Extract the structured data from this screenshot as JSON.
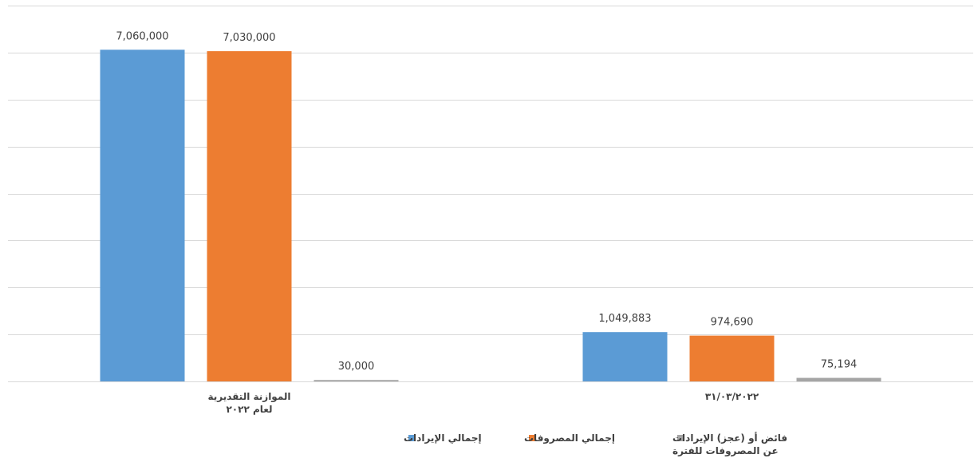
{
  "chart_data": {
    "type": "bar",
    "categories": [
      [
        "٣١/٠٣/٢٠٢٢"
      ],
      [
        "الموازنة التقديرية",
        "لعام ٢٠٢٢"
      ]
    ],
    "series": [
      {
        "name": "إجمالي الإيرادات",
        "color": "#5b9bd5",
        "values": [
          1049883,
          7060000
        ],
        "labels": [
          "1,049,883",
          "7,060,000"
        ]
      },
      {
        "name": "إجمالي المصروفات",
        "color": "#ed7d31",
        "values": [
          974690,
          7030000
        ],
        "labels": [
          "974,690",
          "7,030,000"
        ]
      },
      {
        "name": "فائض أو (عجز) الإيرادات عن المصروفات للفترة",
        "name_lines": [
          "فائض أو (عجز) الإيرادات",
          "عن المصروفات للفترة"
        ],
        "color": "#a5a5a5",
        "values": [
          75194,
          30000
        ],
        "labels": [
          "75,194",
          "30,000"
        ]
      }
    ],
    "ylim": [
      0,
      8000000
    ],
    "grid": true,
    "legend_position": "bottom",
    "category_order": "right-to-left"
  }
}
